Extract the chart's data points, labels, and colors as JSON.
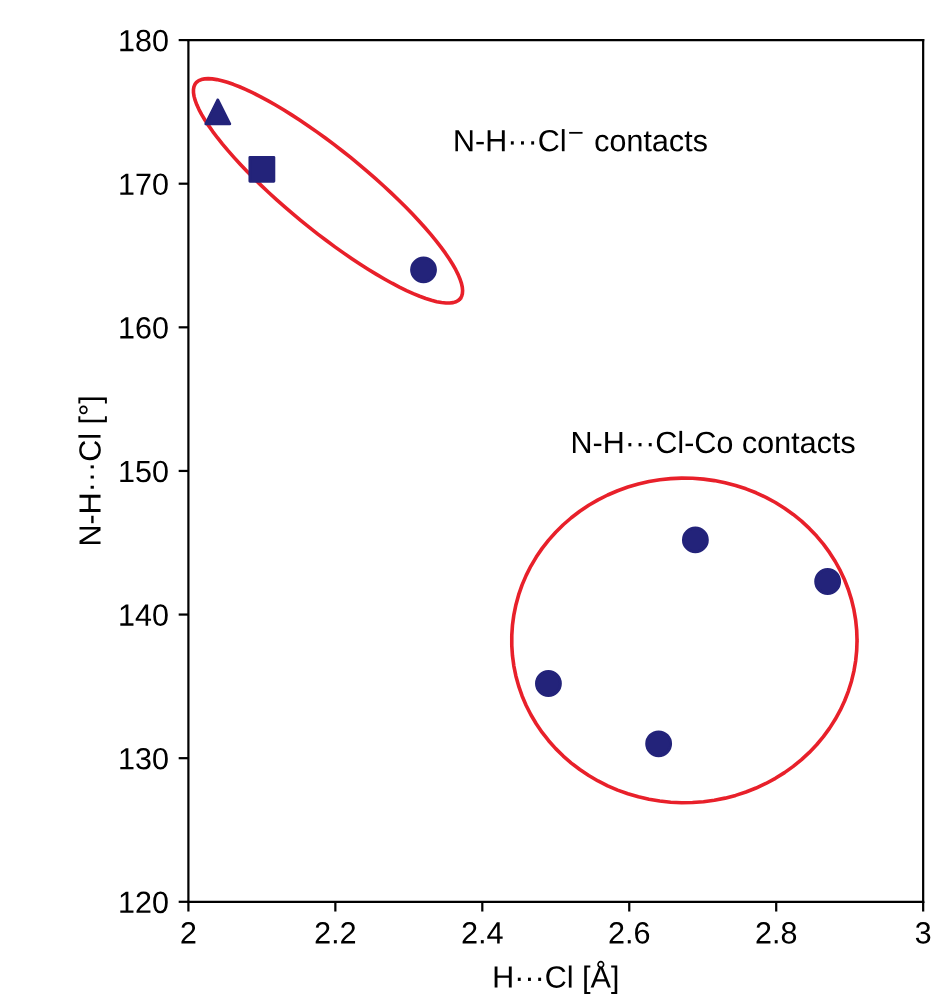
{
  "chart_data": {
    "type": "scatter",
    "xlabel": "H···Cl [Å]",
    "ylabel": "N-H···Cl [°]",
    "xlim": [
      2,
      3
    ],
    "xticks": [
      2,
      {
        "value": 2.2,
        "label": "2.2"
      },
      {
        "value": 2.4,
        "label": "2.4"
      },
      {
        "value": 2.6,
        "label": "2.6"
      },
      {
        "value": 2.8,
        "label": "2.8"
      },
      3
    ],
    "ylim": [
      120,
      180
    ],
    "yticks": [
      120,
      130,
      140,
      150,
      160,
      170,
      180
    ],
    "grid": false,
    "series": [
      {
        "color": "#23237a",
        "marker": "triangle",
        "x": [
          2.04
        ],
        "values": [
          175
        ]
      },
      {
        "color": "#23237a",
        "marker": "square",
        "x": [
          2.1
        ],
        "values": [
          171
        ]
      },
      {
        "color": "#23237a",
        "marker": "circle",
        "x": [
          2.32,
          2.49,
          2.64,
          2.69,
          2.87
        ],
        "values": [
          164,
          135.2,
          131,
          145.2,
          142.3
        ]
      }
    ],
    "annotations": [
      "N-H···Cl$^{−}$ contacts",
      "N-H···Cl-Co contacts"
    ]
  }
}
